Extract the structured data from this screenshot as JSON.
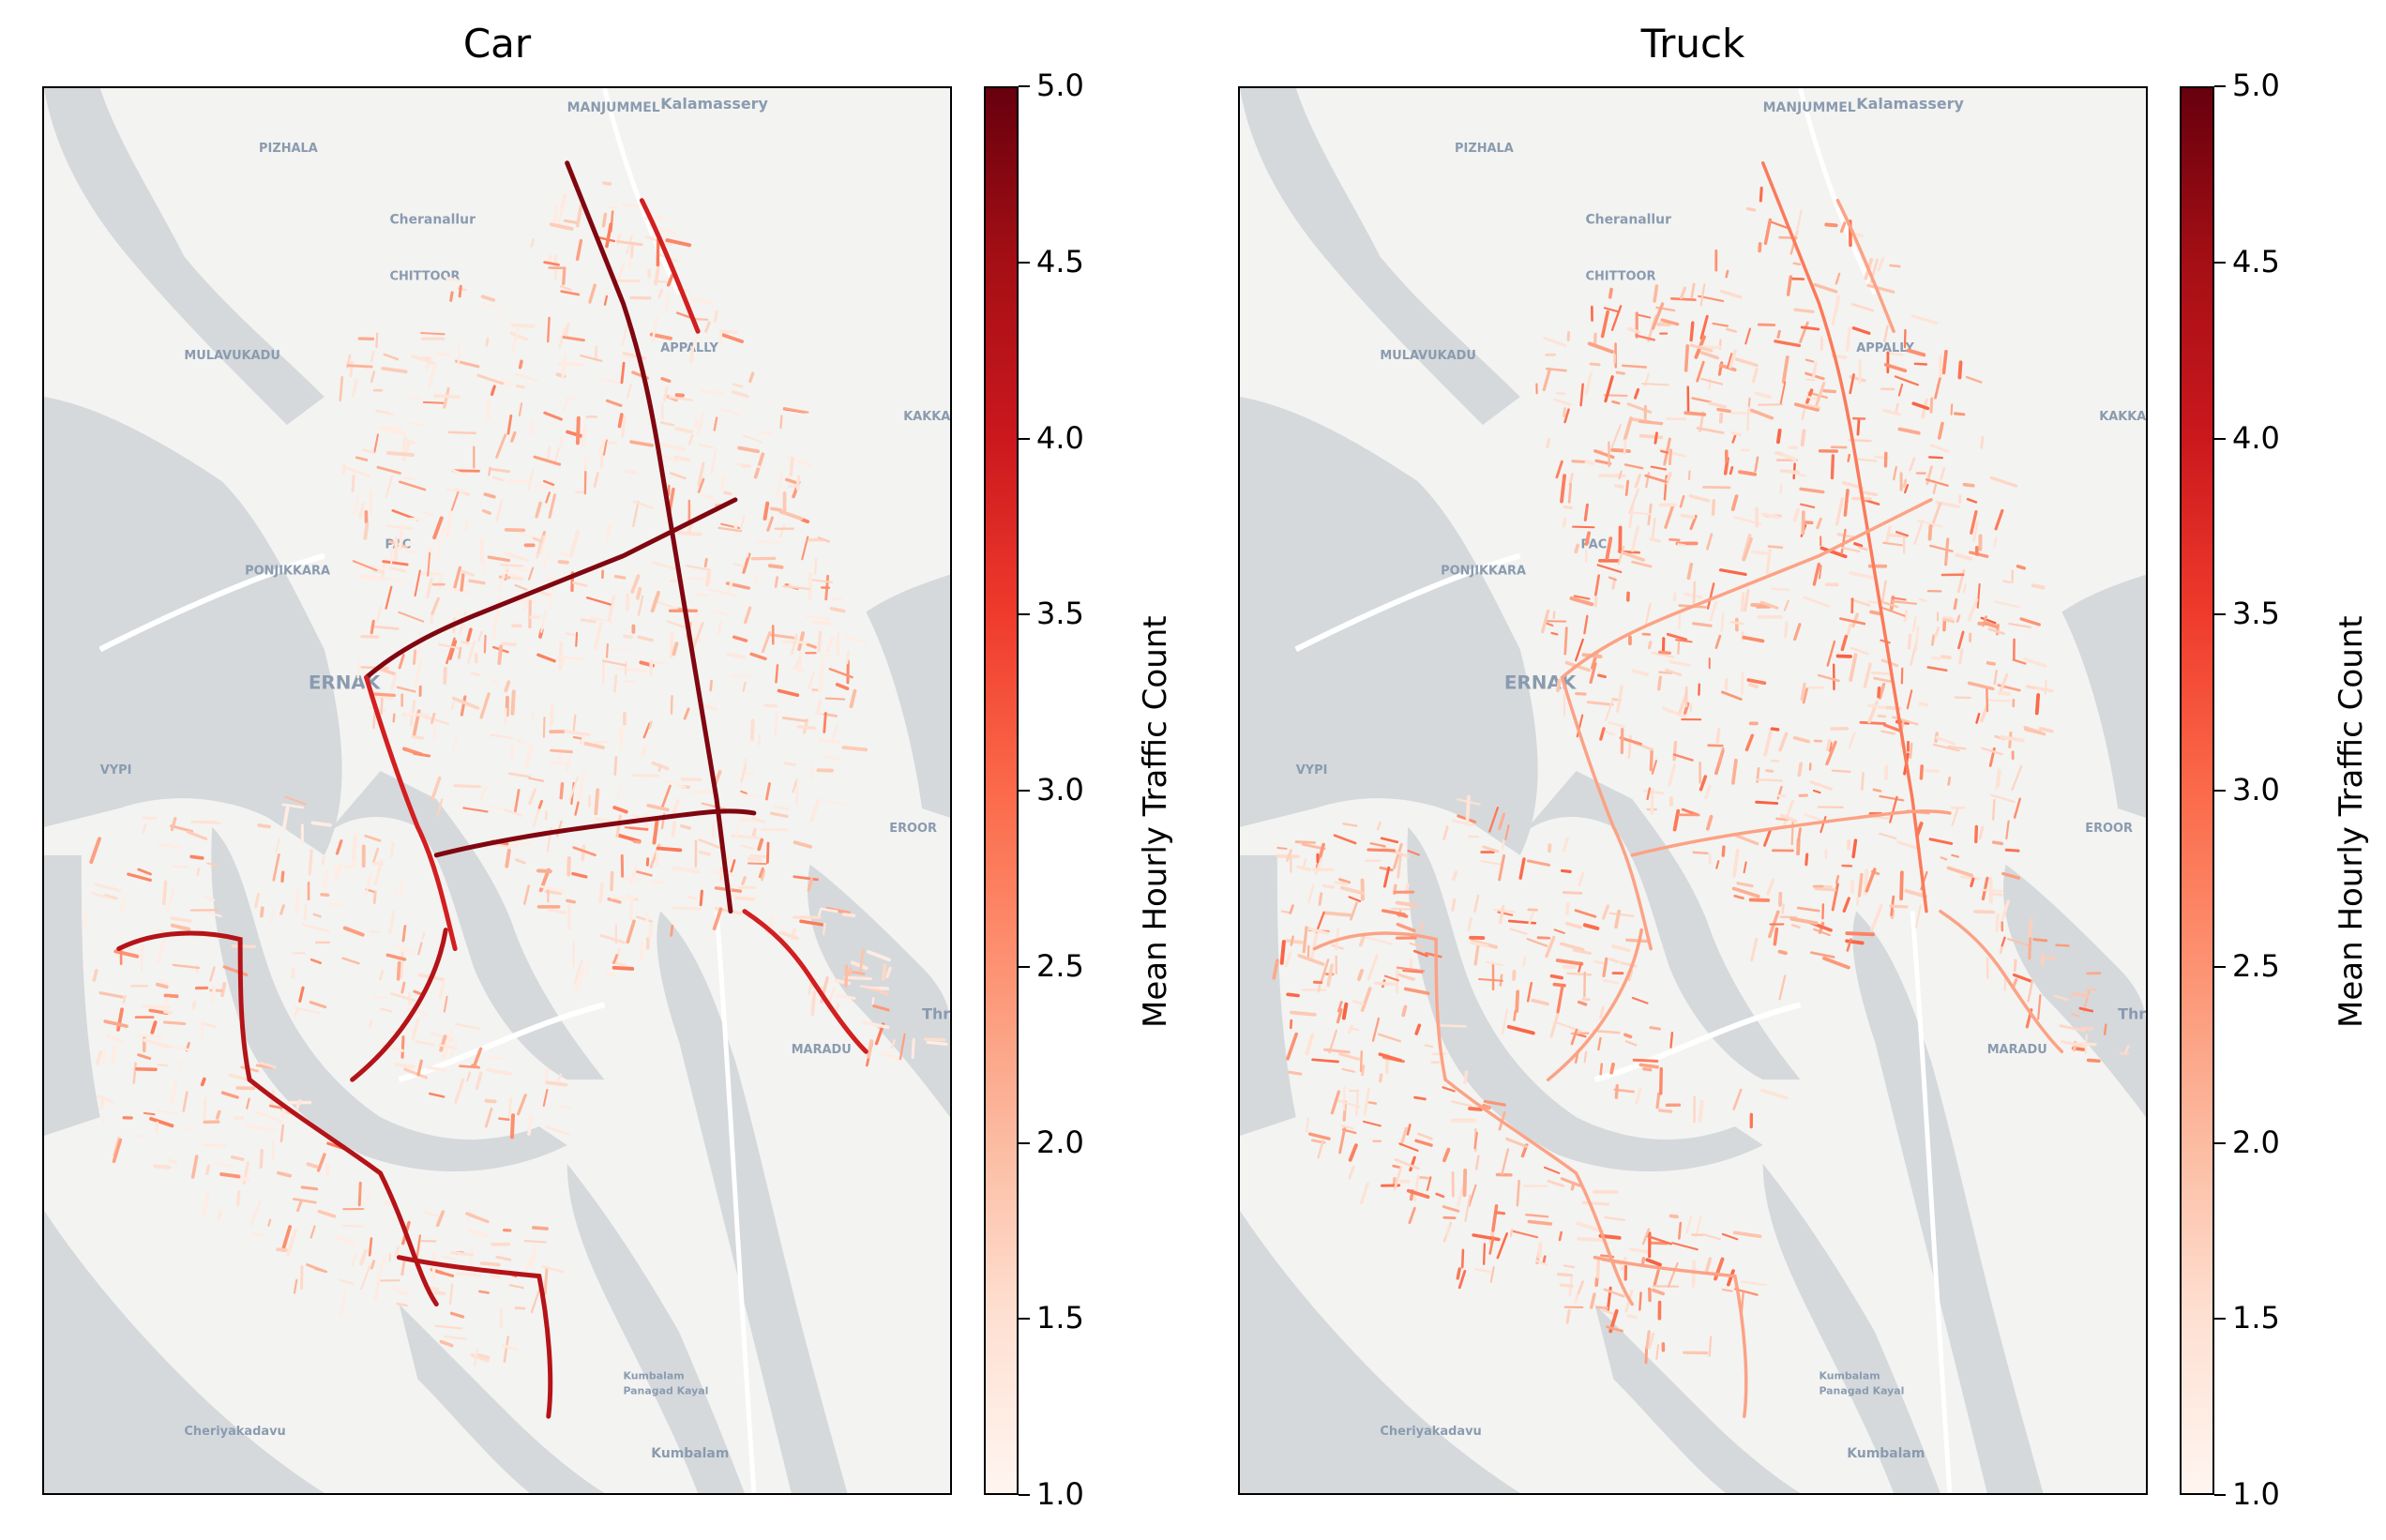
{
  "figure": {
    "panels": [
      {
        "title": "Car"
      },
      {
        "title": "Truck"
      }
    ],
    "colorbar": {
      "label": "Mean Hourly Traffic Count",
      "ticks": [
        "5.0",
        "4.5",
        "4.0",
        "3.5",
        "3.0",
        "2.5",
        "2.0",
        "1.5",
        "1.0"
      ],
      "colormap": "Reds"
    },
    "map_labels": [
      "MANJUMMEL",
      "Kalamassery",
      "PIZHALA",
      "Cheranallur",
      "CHITTOOR",
      "MULAVUKADU",
      "APPALLY",
      "KAKKAN",
      "PONJIKKARA",
      "PAC",
      "ERNAK",
      "VYPI",
      "EROOR",
      "MARADU",
      "Thr",
      "Kumbalam Panagad Kayal",
      "Cheriyakadavu",
      "Kumbalam"
    ]
  },
  "chart_data": [
    {
      "type": "heatmap",
      "title": "Car",
      "colorbar_label": "Mean Hourly Traffic Count",
      "colorbar_range": [
        1.0,
        5.0
      ],
      "colorbar_ticks": [
        1.0,
        1.5,
        2.0,
        2.5,
        3.0,
        3.5,
        4.0,
        4.5,
        5.0
      ],
      "colormap": "Reds"
    },
    {
      "type": "heatmap",
      "title": "Truck",
      "colorbar_label": "Mean Hourly Traffic Count",
      "colorbar_range": [
        1.0,
        5.0
      ],
      "colorbar_ticks": [
        1.0,
        1.5,
        2.0,
        2.5,
        3.0,
        3.5,
        4.0,
        4.5,
        5.0
      ],
      "colormap": "Reds"
    }
  ]
}
